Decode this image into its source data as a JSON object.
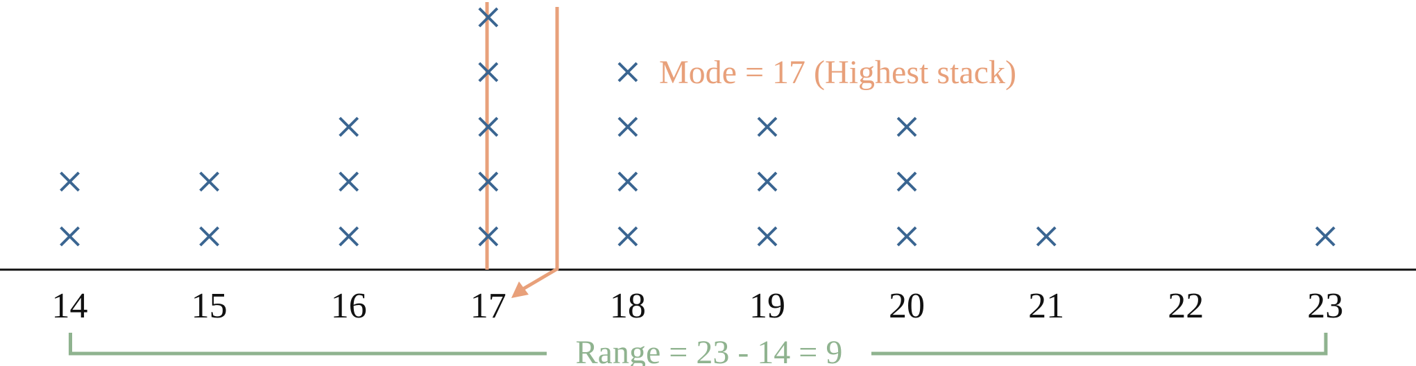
{
  "chart_data": {
    "type": "dot",
    "x": [
      14,
      15,
      16,
      17,
      18,
      19,
      20,
      21,
      22,
      23
    ],
    "values": [
      2,
      2,
      3,
      5,
      4,
      3,
      3,
      1,
      0,
      1
    ],
    "color": "#3A6591",
    "xlim": [
      13.5,
      23.65
    ],
    "xticks": [
      14,
      15,
      16,
      17,
      18,
      19,
      20,
      21,
      22,
      23
    ],
    "annotations": [
      "Mode = 17 (Highest stack)",
      "Range = 23 - 14 = 9"
    ]
  }
}
